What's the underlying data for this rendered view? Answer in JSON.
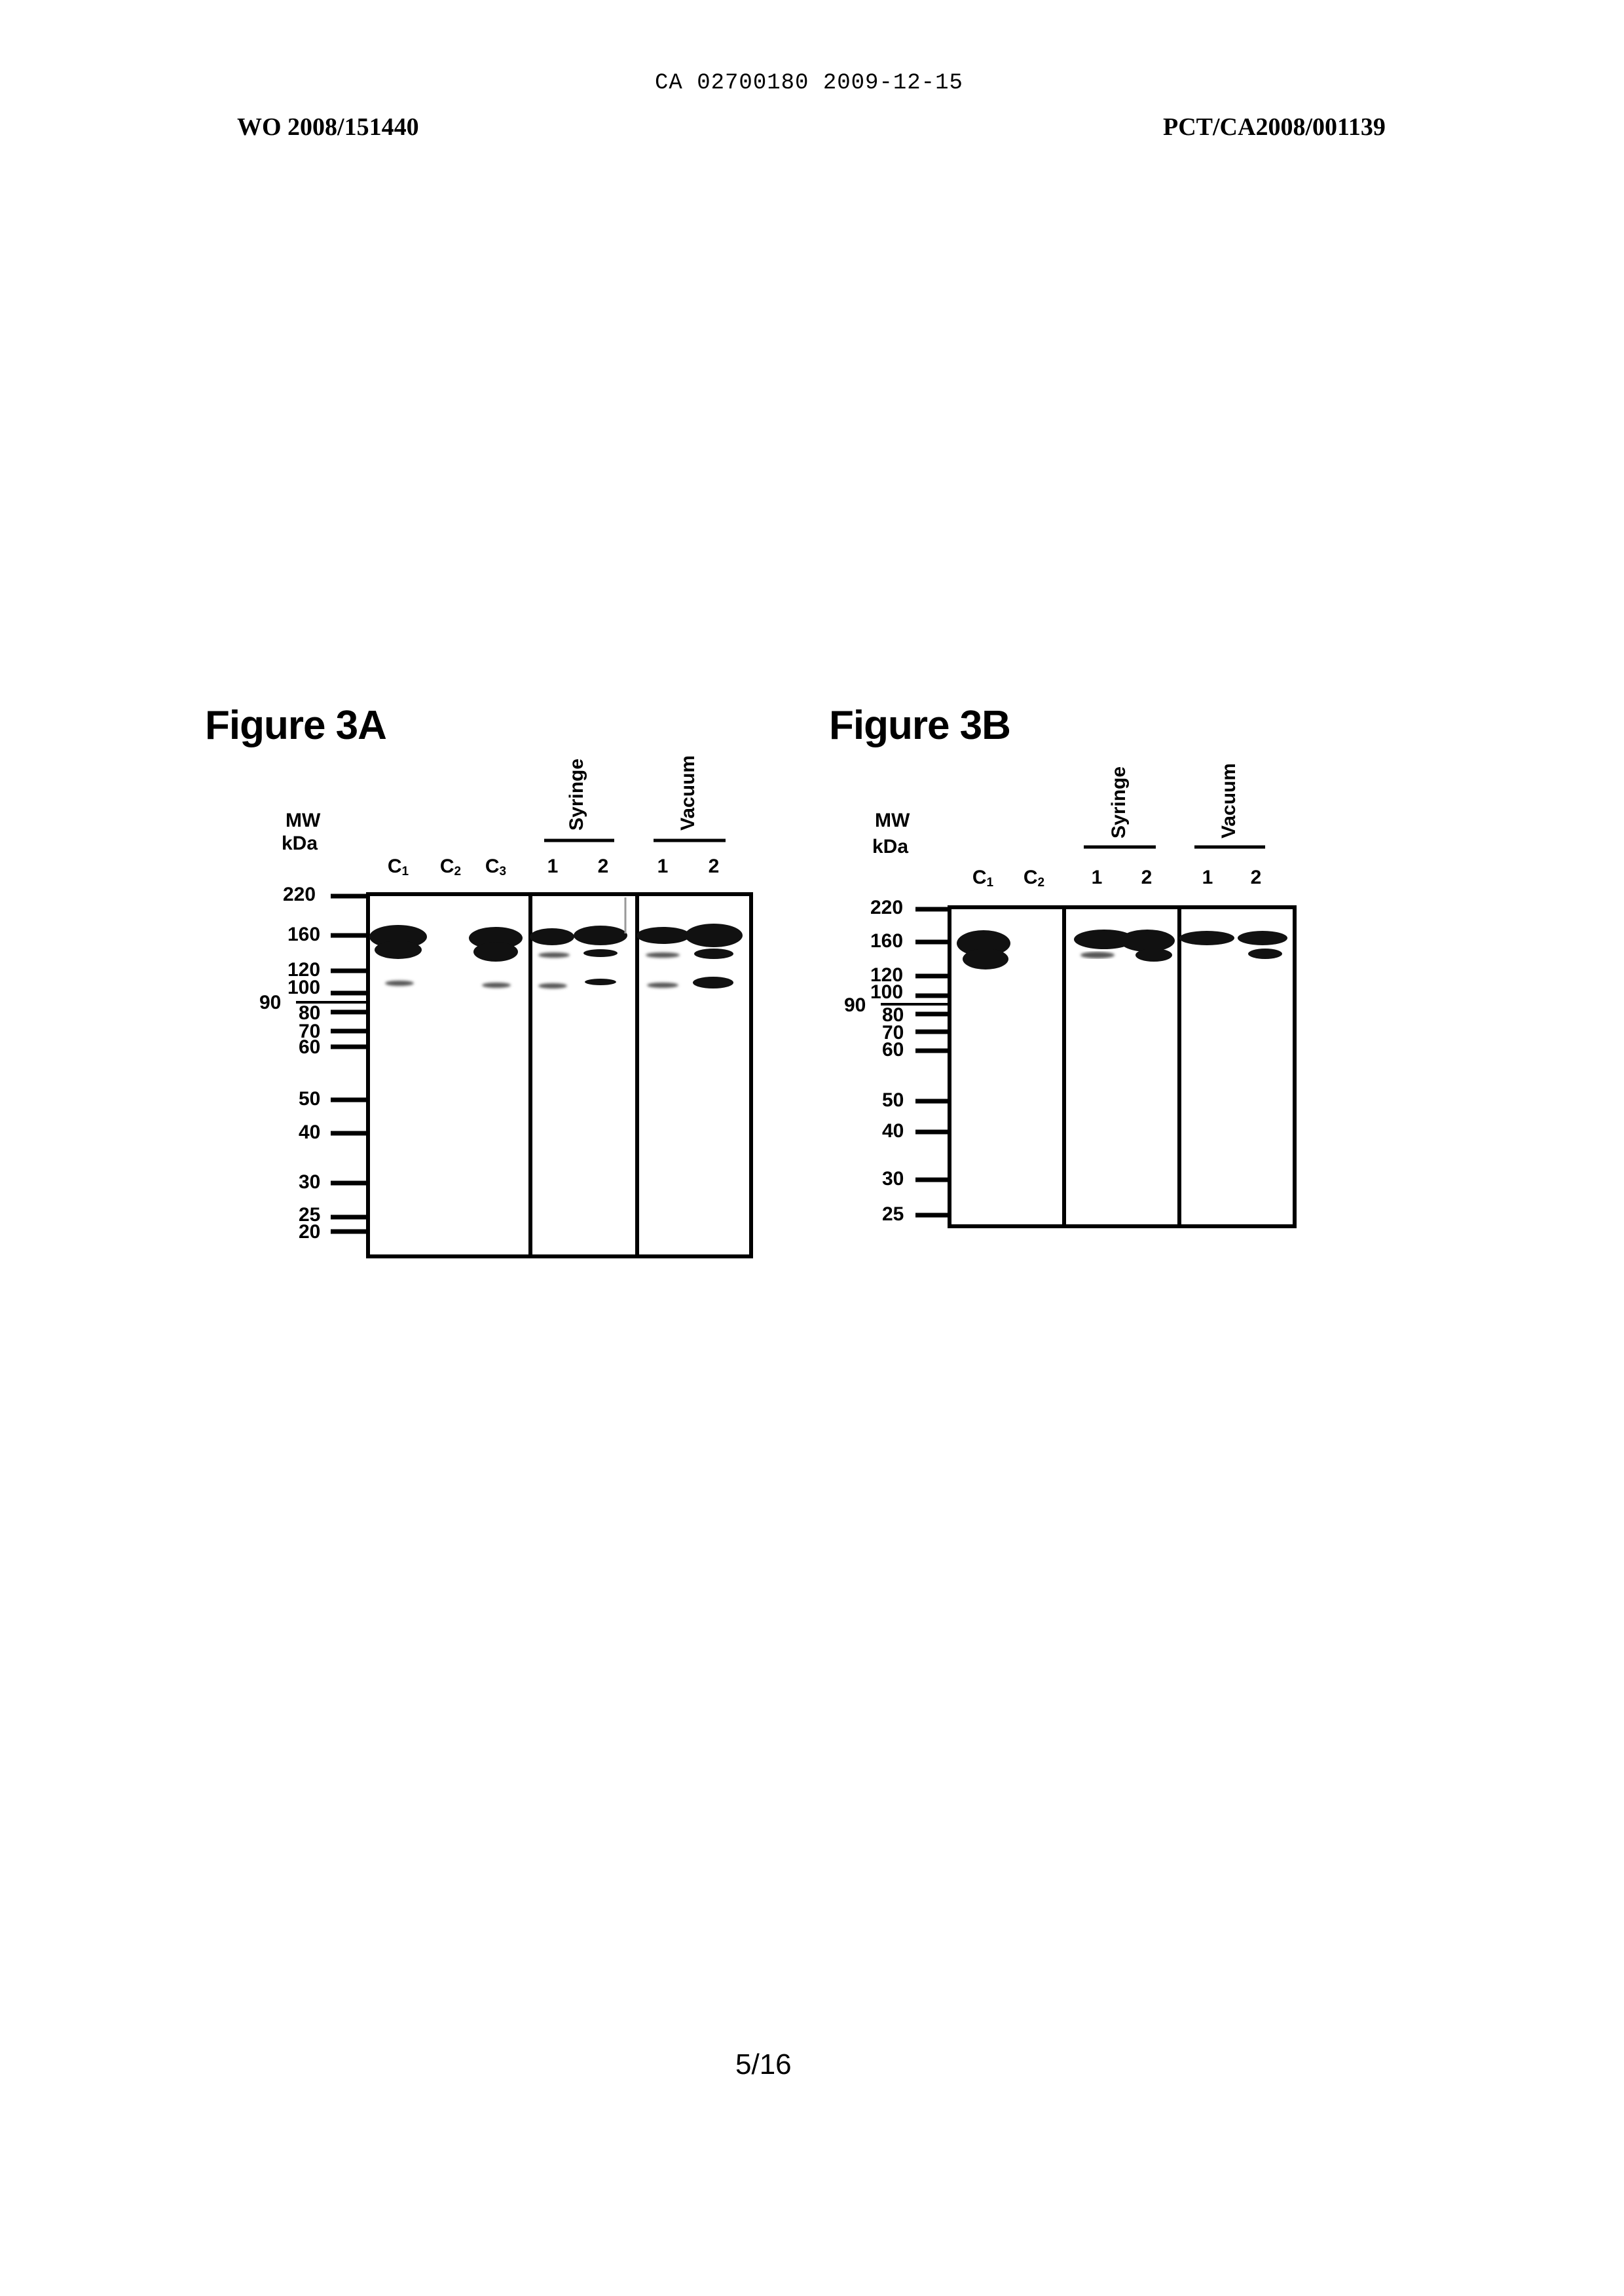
{
  "header": {
    "stamp": "CA 02700180 2009-12-15",
    "left": "WO 2008/151440",
    "right": "PCT/CA2008/001139"
  },
  "figure_a": {
    "title": "Figure 3A",
    "mw_label": "MW",
    "kda_label": "kDa",
    "markers": [
      "220",
      "160",
      "120",
      "100",
      "90",
      "80",
      "70",
      "60",
      "50",
      "40",
      "30",
      "25",
      "20"
    ],
    "lanes": [
      {
        "base": "C",
        "sub": "1"
      },
      {
        "base": "C",
        "sub": "2"
      },
      {
        "base": "C",
        "sub": "3"
      },
      {
        "base": "1",
        "sub": ""
      },
      {
        "base": "2",
        "sub": ""
      },
      {
        "base": "1",
        "sub": ""
      },
      {
        "base": "2",
        "sub": ""
      }
    ],
    "groups": [
      "Syringe",
      "Vacuum"
    ]
  },
  "figure_b": {
    "title": "Figure 3B",
    "mw_label": "MW",
    "kda_label": "kDa",
    "markers": [
      "220",
      "160",
      "120",
      "100",
      "90",
      "80",
      "70",
      "60",
      "50",
      "40",
      "30",
      "25"
    ],
    "lanes": [
      {
        "base": "C",
        "sub": "1"
      },
      {
        "base": "C",
        "sub": "2"
      },
      {
        "base": "1",
        "sub": ""
      },
      {
        "base": "2",
        "sub": ""
      },
      {
        "base": "1",
        "sub": ""
      },
      {
        "base": "2",
        "sub": ""
      }
    ],
    "groups": [
      "Syringe",
      "Vacuum"
    ]
  },
  "footer": {
    "page": "5/16"
  }
}
